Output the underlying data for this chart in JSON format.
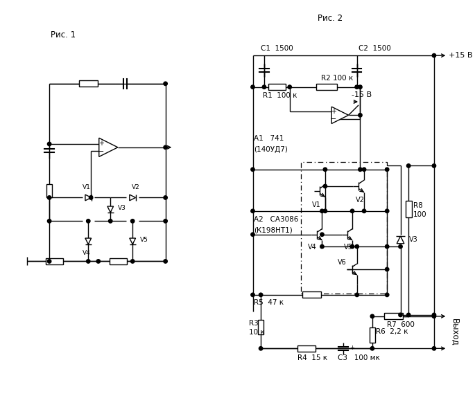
{
  "title1": "Рис. 1",
  "title2": "Рис. 2",
  "bg_color": "#ffffff",
  "line_color": "#000000",
  "lw": 1.0,
  "fig_width": 6.85,
  "fig_height": 5.98,
  "labels": {
    "C1": "C1  1500",
    "C2": "C2  1500",
    "R1": "R1  100 к",
    "R2": "R2 100 к",
    "R3": "R3",
    "R3b": "10 к",
    "R4": "R4  15 к",
    "R5": "R5  47 к",
    "R6": "R6  2,2 к",
    "R7": "R7  600",
    "R8": "R8",
    "R8b": "100",
    "A1": "А1   741",
    "A1b": "(140УД7)",
    "A2": "А2   СА3086",
    "A2b": "(К198НТ1)",
    "C3": "С3   100 мк",
    "plus15": "+15 В",
    "minus15": "-15 В",
    "output": "Выход"
  }
}
